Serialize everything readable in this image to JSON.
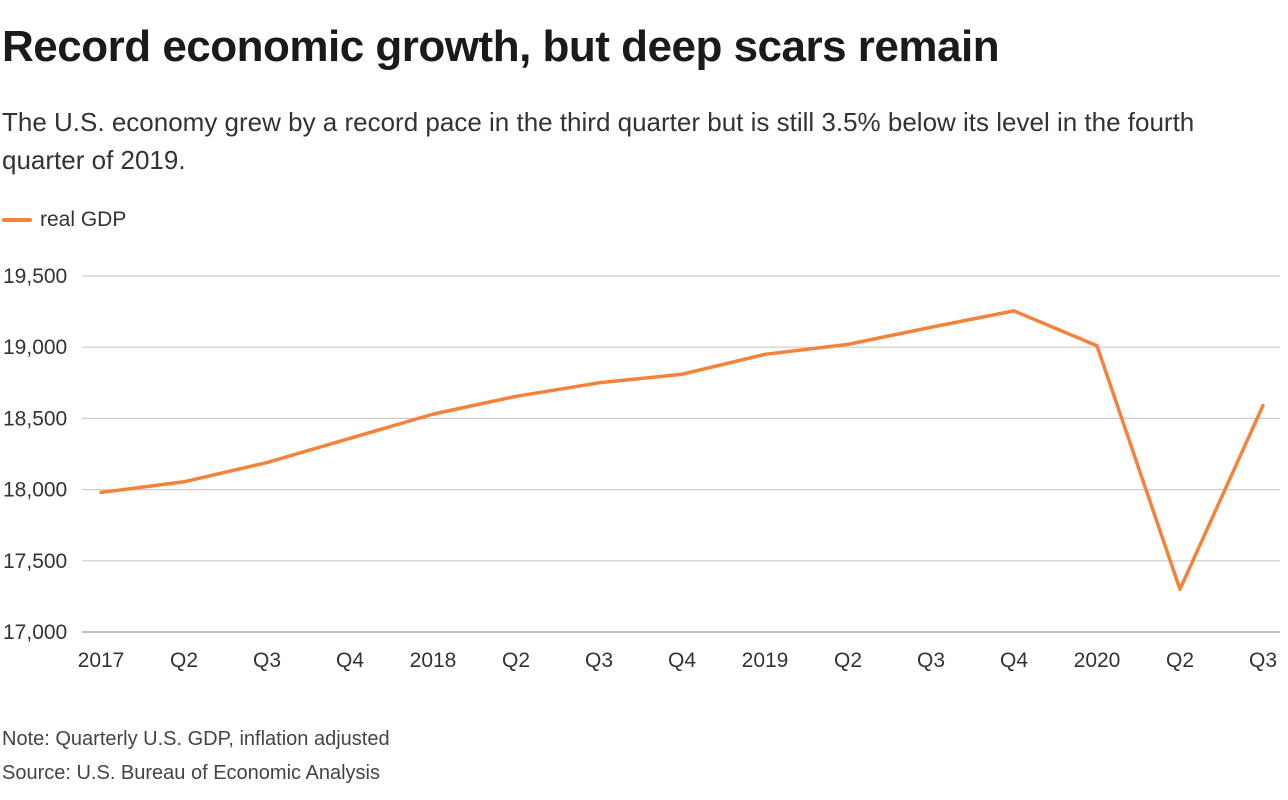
{
  "colors": {
    "line": "#f4823a",
    "grid": "#cccccc",
    "axis_text": "#333333"
  },
  "chart_data": {
    "type": "line",
    "title": "Record economic growth, but deep scars remain",
    "subtitle": "The U.S. economy grew by a record pace in the third quarter but is still 3.5% below its level in the fourth quarter of 2019.",
    "legend": "top-left",
    "grid": true,
    "xlabel": "",
    "ylabel": "",
    "categories": [
      "2017",
      "Q2",
      "Q3",
      "Q4",
      "2018",
      "Q2",
      "Q3",
      "Q4",
      "2019",
      "Q2",
      "Q3",
      "Q4",
      "2020",
      "Q2",
      "Q3"
    ],
    "series": [
      {
        "name": "real GDP",
        "values": [
          17980,
          18055,
          18190,
          18360,
          18530,
          18655,
          18750,
          18810,
          18950,
          19020,
          19140,
          19255,
          19010,
          17300,
          18590
        ]
      }
    ],
    "ylim": [
      17000,
      19500
    ],
    "yticks": [
      19500,
      19000,
      18500,
      18000,
      17500,
      17000
    ],
    "ytick_labels": [
      "19,500",
      "19,000",
      "18,500",
      "18,000",
      "17,500",
      "17,000"
    ]
  },
  "footer": {
    "note": "Note: Quarterly U.S. GDP, inflation adjusted",
    "source": "Source: U.S. Bureau of Economic Analysis"
  }
}
